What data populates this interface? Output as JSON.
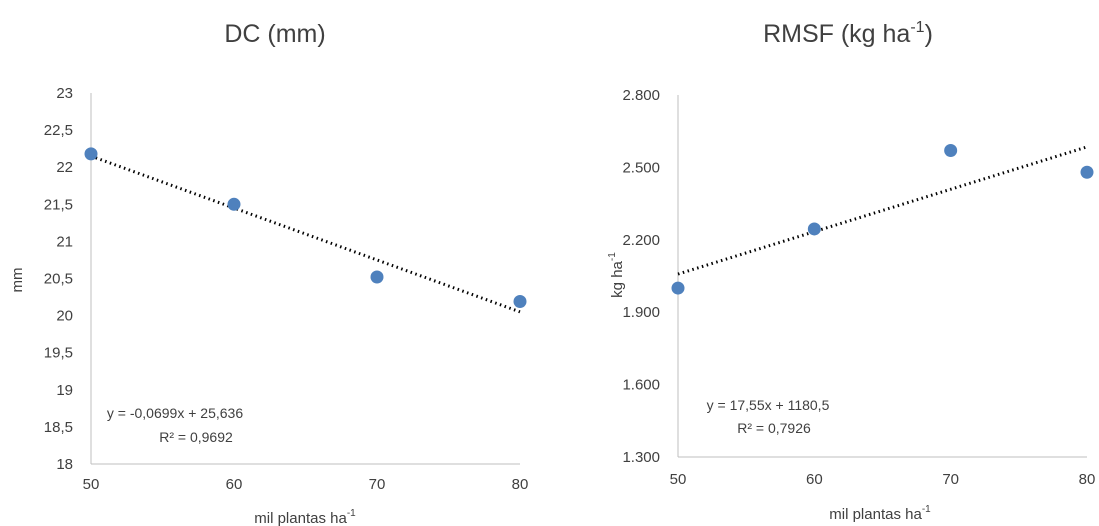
{
  "chart_data": [
    {
      "type": "scatter",
      "title": "DC (mm)",
      "title_sup": "",
      "xlabel": "mil plantas ha",
      "xlabel_sup": "-1",
      "ylabel": "mm",
      "ylabel_sup": "",
      "xlim": [
        50,
        80
      ],
      "ylim": [
        18,
        23
      ],
      "x_ticks": [
        "50",
        "60",
        "70",
        "80"
      ],
      "y_ticks": [
        "18",
        "18,5",
        "19",
        "19,5",
        "20",
        "20,5",
        "21",
        "21,5",
        "22",
        "22,5",
        "23"
      ],
      "series": [
        {
          "x": [
            50,
            60,
            70,
            80
          ],
          "y": [
            22.18,
            21.5,
            20.52,
            20.19
          ],
          "color": "#4f81bd"
        }
      ],
      "trendline": {
        "type": "linear",
        "from": [
          50,
          22.15
        ],
        "to": [
          80,
          20.05
        ],
        "style": "dotted"
      },
      "equation": "y = -0,0699x + 25,636",
      "r2": "R² = 0,9692",
      "grid": false,
      "legend": "none"
    },
    {
      "type": "scatter",
      "title": "RMSF (kg ha",
      "title_sup": "-1",
      "title_end": ")",
      "xlabel": "mil plantas ha",
      "xlabel_sup": "-1",
      "ylabel": "kg ha",
      "ylabel_sup": "-1",
      "xlim": [
        50,
        80
      ],
      "ylim": [
        1300,
        2800
      ],
      "x_ticks": [
        "50",
        "60",
        "70",
        "80"
      ],
      "y_ticks": [
        "1.300",
        "1.600",
        "1.900",
        "2.200",
        "2.500",
        "2.800"
      ],
      "series": [
        {
          "x": [
            50,
            60,
            70,
            80
          ],
          "y": [
            2000,
            2245,
            2570,
            2480
          ],
          "color": "#4f81bd"
        }
      ],
      "trendline": {
        "type": "linear",
        "from": [
          50,
          2058
        ],
        "to": [
          80,
          2585
        ],
        "style": "dotted"
      },
      "equation": "y = 17,55x + 1180,5",
      "r2": "R² = 0,7926",
      "grid": false,
      "legend": "none"
    }
  ]
}
